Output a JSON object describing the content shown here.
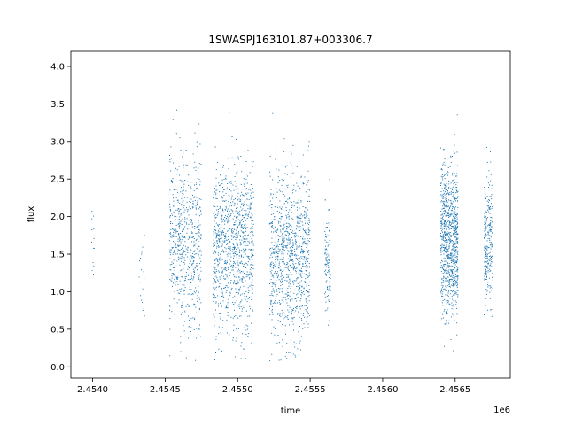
{
  "chart_data": {
    "type": "scatter",
    "title": "1SWASPJ163101.87+003306.7",
    "xlabel": "time",
    "ylabel": "flux",
    "x_offset_label": "1e6",
    "xlim": [
      2.45385,
      2.45688
    ],
    "ylim": [
      -0.15,
      4.2
    ],
    "x_ticks": [
      2.454,
      2.4545,
      2.455,
      2.4555,
      2.456,
      2.4565
    ],
    "x_tick_labels": [
      "2.4540",
      "2.4545",
      "2.4550",
      "2.4555",
      "2.4560",
      "2.4565"
    ],
    "y_ticks": [
      0.0,
      0.5,
      1.0,
      1.5,
      2.0,
      2.5,
      3.0,
      3.5,
      4.0
    ],
    "y_tick_labels": [
      "0.0",
      "0.5",
      "1.0",
      "1.5",
      "2.0",
      "2.5",
      "3.0",
      "3.5",
      "4.0"
    ],
    "grid": false,
    "marker_color": "#1f77b4",
    "clusters": [
      {
        "x_center": 2.454,
        "x_width": 1e-05,
        "flux_mean": 1.7,
        "flux_spread": 0.3,
        "count": 14
      },
      {
        "x_center": 2.45434,
        "x_width": 2e-05,
        "flux_mean": 1.3,
        "flux_spread": 0.35,
        "count": 22
      },
      {
        "x_center": 2.45464,
        "x_width": 0.00011,
        "flux_mean": 1.65,
        "flux_spread": 0.55,
        "count": 650
      },
      {
        "x_center": 2.45497,
        "x_width": 0.00014,
        "flux_mean": 1.55,
        "flux_spread": 0.55,
        "count": 1000
      },
      {
        "x_center": 2.45536,
        "x_width": 0.00014,
        "flux_mean": 1.5,
        "flux_spread": 0.55,
        "count": 1000
      },
      {
        "x_center": 2.45562,
        "x_width": 2e-05,
        "flux_mean": 1.35,
        "flux_spread": 0.3,
        "count": 110
      },
      {
        "x_center": 2.45646,
        "x_width": 6e-05,
        "flux_mean": 1.7,
        "flux_spread": 0.5,
        "count": 900
      },
      {
        "x_center": 2.45673,
        "x_width": 3e-05,
        "flux_mean": 1.7,
        "flux_spread": 0.45,
        "count": 260
      }
    ]
  }
}
